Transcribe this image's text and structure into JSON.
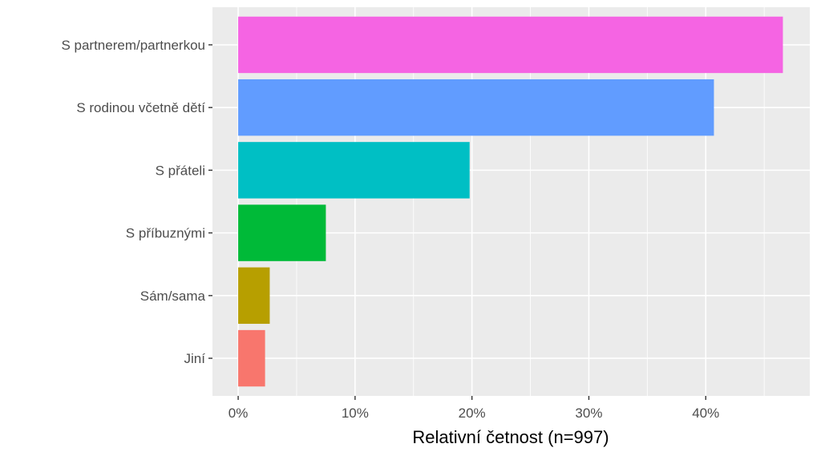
{
  "chart_data": {
    "type": "bar",
    "orientation": "horizontal",
    "title": "",
    "xlabel": "Relativní četnost (n=997)",
    "ylabel": "",
    "categories": [
      "S partnerem/partnerkou",
      "S rodinou včetně dětí",
      "S přáteli",
      "S příbuznými",
      "Sám/sama",
      "Jiní"
    ],
    "values": [
      46.6,
      40.7,
      19.8,
      7.5,
      2.7,
      2.3
    ],
    "colors": [
      "#f564e3",
      "#619cff",
      "#00bfc4",
      "#00ba38",
      "#b79f00",
      "#f8766d"
    ],
    "xlim": [
      -2.2,
      48.9
    ],
    "xticks": [
      0,
      10,
      20,
      30,
      40
    ],
    "xtick_labels": [
      "0%",
      "10%",
      "20%",
      "30%",
      "40%"
    ],
    "grid": true,
    "legend": "none",
    "panel_background": "#ebebeb"
  }
}
